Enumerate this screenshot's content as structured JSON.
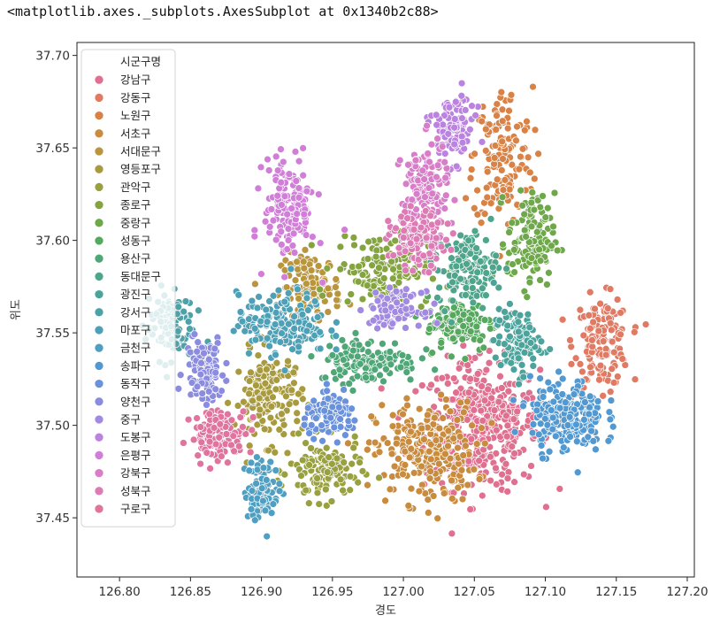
{
  "output_repr": "<matplotlib.axes._subplots.AxesSubplot at 0x1340b2c88>",
  "chart_data": {
    "type": "scatter",
    "xlabel": "경도",
    "ylabel": "위도",
    "xlim": [
      126.77,
      127.205
    ],
    "ylim": [
      37.418,
      37.707
    ],
    "xticks": [
      "126.80",
      "126.85",
      "126.90",
      "126.95",
      "127.00",
      "127.05",
      "127.10",
      "127.15",
      "127.20"
    ],
    "yticks": [
      "37.45",
      "37.50",
      "37.55",
      "37.60",
      "37.65",
      "37.70"
    ],
    "grid": false,
    "legend_placement": "upper-left",
    "legend_title": "시군구명",
    "series": [
      {
        "name": "강남구",
        "color": "#e0708f",
        "center": [
          127.055,
          37.5
        ],
        "spread": [
          0.027,
          0.023
        ],
        "count": 420
      },
      {
        "name": "강동구",
        "color": "#e07a63",
        "center": [
          127.14,
          37.545
        ],
        "spread": [
          0.013,
          0.016
        ],
        "count": 150
      },
      {
        "name": "노원구",
        "color": "#d98245",
        "center": [
          127.07,
          37.645
        ],
        "spread": [
          0.014,
          0.025
        ],
        "count": 160
      },
      {
        "name": "서초구",
        "color": "#c98b3d",
        "center": [
          127.015,
          37.485
        ],
        "spread": [
          0.024,
          0.018
        ],
        "count": 260
      },
      {
        "name": "서대문구",
        "color": "#b9953d",
        "center": [
          126.935,
          37.575
        ],
        "spread": [
          0.014,
          0.012
        ],
        "count": 120
      },
      {
        "name": "영등포구",
        "color": "#a89a3f",
        "center": [
          126.905,
          37.515
        ],
        "spread": [
          0.016,
          0.016
        ],
        "count": 160
      },
      {
        "name": "관악구",
        "color": "#98a03f",
        "center": [
          126.945,
          37.475
        ],
        "spread": [
          0.017,
          0.011
        ],
        "count": 120
      },
      {
        "name": "종로구",
        "color": "#84a43f",
        "center": [
          126.985,
          37.585
        ],
        "spread": [
          0.022,
          0.013
        ],
        "count": 140
      },
      {
        "name": "중랑구",
        "color": "#6ea84a",
        "center": [
          127.09,
          37.6
        ],
        "spread": [
          0.011,
          0.017
        ],
        "count": 130
      },
      {
        "name": "성동구",
        "color": "#55a85d",
        "center": [
          127.04,
          37.555
        ],
        "spread": [
          0.016,
          0.01
        ],
        "count": 130
      },
      {
        "name": "용산구",
        "color": "#4fa676",
        "center": [
          126.975,
          37.535
        ],
        "spread": [
          0.023,
          0.008
        ],
        "count": 140
      },
      {
        "name": "동대문구",
        "color": "#4ea58c",
        "center": [
          127.045,
          37.585
        ],
        "spread": [
          0.014,
          0.013
        ],
        "count": 130
      },
      {
        "name": "광진구",
        "color": "#4ca39b",
        "center": [
          127.08,
          37.545
        ],
        "spread": [
          0.011,
          0.012
        ],
        "count": 110
      },
      {
        "name": "강서구",
        "color": "#4da2a8",
        "center": [
          126.835,
          37.555
        ],
        "spread": [
          0.011,
          0.013
        ],
        "count": 110
      },
      {
        "name": "마포구",
        "color": "#4ea0b6",
        "center": [
          126.915,
          37.555
        ],
        "spread": [
          0.021,
          0.011
        ],
        "count": 180
      },
      {
        "name": "금천구",
        "color": "#4f9fc2",
        "center": [
          126.9,
          37.465
        ],
        "spread": [
          0.008,
          0.011
        ],
        "count": 90
      },
      {
        "name": "송파구",
        "color": "#5298d1",
        "center": [
          127.115,
          37.505
        ],
        "spread": [
          0.017,
          0.013
        ],
        "count": 230
      },
      {
        "name": "동작구",
        "color": "#6a92dc",
        "center": [
          126.95,
          37.505
        ],
        "spread": [
          0.013,
          0.007
        ],
        "count": 110
      },
      {
        "name": "양천구",
        "color": "#8b8ce0",
        "center": [
          126.86,
          37.53
        ],
        "spread": [
          0.009,
          0.012
        ],
        "count": 120
      },
      {
        "name": "중구",
        "color": "#a289e1",
        "center": [
          126.995,
          37.563
        ],
        "spread": [
          0.012,
          0.006
        ],
        "count": 100
      },
      {
        "name": "도봉구",
        "color": "#bb83e0",
        "center": [
          127.035,
          37.66
        ],
        "spread": [
          0.01,
          0.012
        ],
        "count": 110
      },
      {
        "name": "은평구",
        "color": "#d07ed8",
        "center": [
          126.92,
          37.618
        ],
        "spread": [
          0.012,
          0.018
        ],
        "count": 160
      },
      {
        "name": "강북구",
        "color": "#d87ec8",
        "center": [
          127.015,
          37.625
        ],
        "spread": [
          0.011,
          0.018
        ],
        "count": 150
      },
      {
        "name": "성북구",
        "color": "#dd7bb5",
        "center": [
          127.01,
          37.6
        ],
        "spread": [
          0.013,
          0.01
        ],
        "count": 120
      },
      {
        "name": "구로구",
        "color": "#e0749e",
        "center": [
          126.87,
          37.495
        ],
        "spread": [
          0.013,
          0.009
        ],
        "count": 120
      }
    ]
  }
}
